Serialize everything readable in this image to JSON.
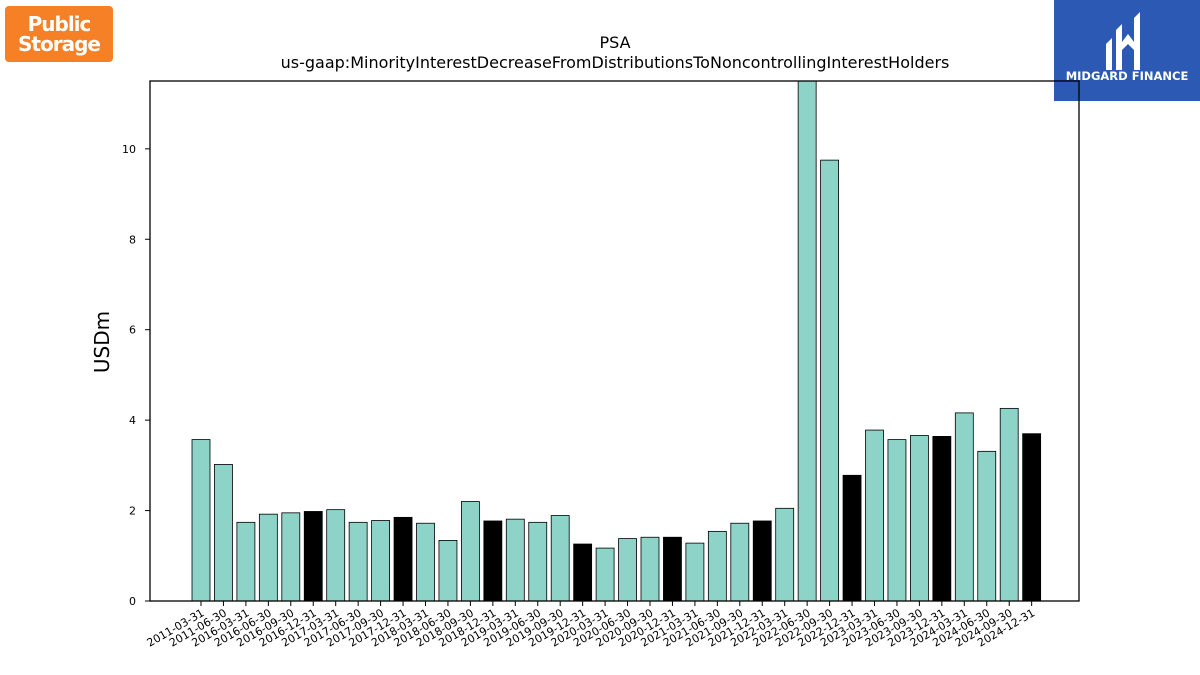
{
  "logos": {
    "left": {
      "line1": "Public",
      "line2": "Storage",
      "color": "#f58025"
    },
    "right": {
      "text": "MIDGARD FINANCE",
      "color": "#2b59b3"
    }
  },
  "chart_data": {
    "type": "bar",
    "title": "PSA",
    "subtitle": "us-gaap:MinorityInterestDecreaseFromDistributionsToNoncontrollingInterestHolders",
    "xlabel": "",
    "ylabel": "USDm",
    "ylim": [
      0,
      11.5
    ],
    "yticks": [
      0,
      2,
      4,
      6,
      8,
      10
    ],
    "grid": false,
    "colors": {
      "default": "#8dd3c7",
      "highlight": "#000000"
    },
    "categories": [
      "2011-03-31",
      "2011-06-30",
      "2016-03-31",
      "2016-06-30",
      "2016-09-30",
      "2016-12-31",
      "2017-03-31",
      "2017-06-30",
      "2017-09-30",
      "2017-12-31",
      "2018-03-31",
      "2018-06-30",
      "2018-09-30",
      "2018-12-31",
      "2019-03-31",
      "2019-06-30",
      "2019-09-30",
      "2019-12-31",
      "2020-03-31",
      "2020-06-30",
      "2020-09-30",
      "2020-12-31",
      "2021-03-31",
      "2021-06-30",
      "2021-09-30",
      "2021-12-31",
      "2022-03-31",
      "2022-06-30",
      "2022-09-30",
      "2022-12-31",
      "2023-03-31",
      "2023-06-30",
      "2023-09-30",
      "2023-12-31",
      "2024-03-31",
      "2024-06-30",
      "2024-09-30",
      "2024-12-31"
    ],
    "values": [
      3.57,
      3.02,
      1.74,
      1.92,
      1.95,
      1.98,
      2.02,
      1.74,
      1.78,
      1.85,
      1.72,
      1.34,
      2.2,
      1.77,
      1.81,
      1.74,
      1.89,
      1.26,
      1.17,
      1.38,
      1.41,
      1.41,
      1.28,
      1.54,
      1.72,
      1.77,
      2.05,
      11.5,
      9.75,
      2.78,
      3.78,
      3.57,
      3.66,
      3.64,
      4.16,
      3.31,
      4.26,
      3.7
    ],
    "highlighted": [
      false,
      false,
      false,
      false,
      false,
      true,
      false,
      false,
      false,
      true,
      false,
      false,
      false,
      true,
      false,
      false,
      false,
      true,
      false,
      false,
      false,
      true,
      false,
      false,
      false,
      true,
      false,
      false,
      false,
      true,
      false,
      false,
      false,
      true,
      false,
      false,
      false,
      true
    ]
  }
}
